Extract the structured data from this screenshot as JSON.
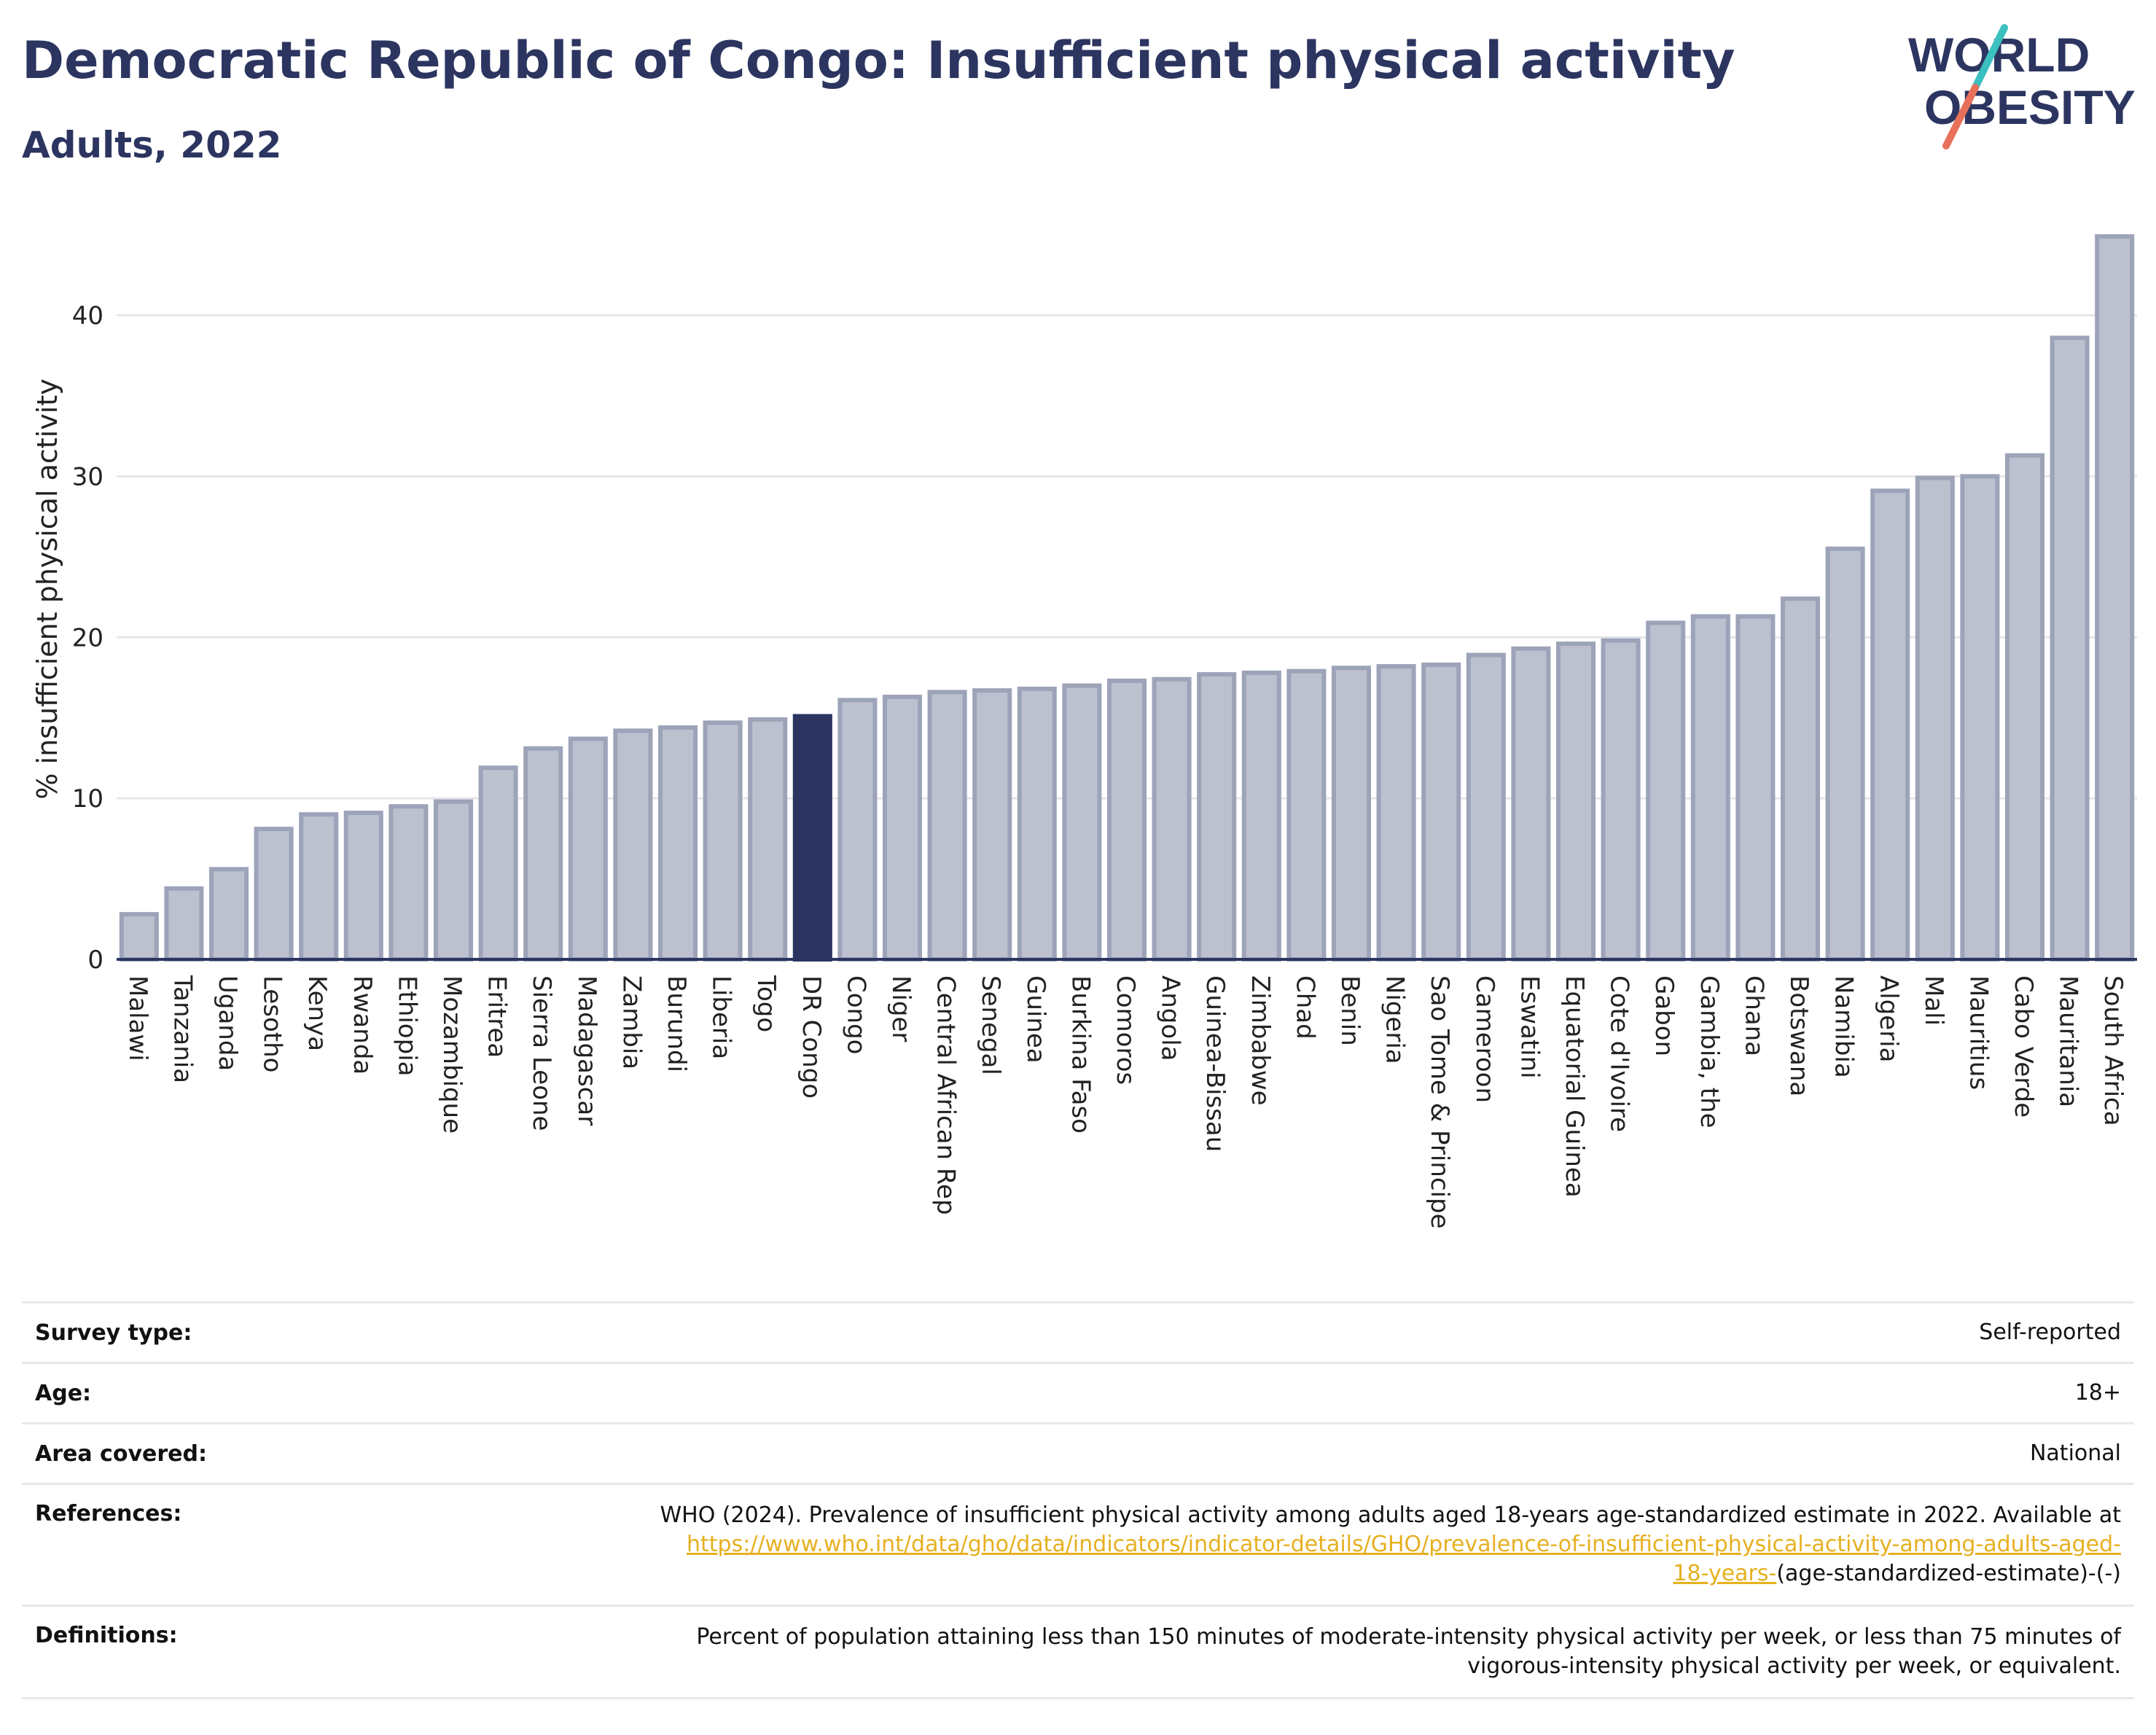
{
  "header": {
    "title": "Democratic Republic of Congo: Insufficient physical activity",
    "subtitle": "Adults, 2022"
  },
  "logo": {
    "line1": "WORLD",
    "line2": "OBESITY"
  },
  "colors": {
    "highlight": "#2c3560",
    "bar_fill": "#bcc0cf",
    "bar_stroke": "#9da3b8",
    "link": "#e6b020"
  },
  "chart_data": {
    "type": "bar",
    "ylabel": "% insufficient physical activity",
    "xlabel": "",
    "ylim": [
      0,
      46
    ],
    "yticks": [
      0,
      10,
      20,
      30,
      40
    ],
    "grid": true,
    "highlight": "DR Congo",
    "categories": [
      "Malawi",
      "Tanzania",
      "Uganda",
      "Lesotho",
      "Kenya",
      "Rwanda",
      "Ethiopia",
      "Mozambique",
      "Eritrea",
      "Sierra Leone",
      "Madagascar",
      "Zambia",
      "Burundi",
      "Liberia",
      "Togo",
      "DR Congo",
      "Congo",
      "Niger",
      "Central African Rep",
      "Senegal",
      "Guinea",
      "Burkina Faso",
      "Comoros",
      "Angola",
      "Guinea-Bissau",
      "Zimbabwe",
      "Chad",
      "Benin",
      "Nigeria",
      "Sao Tome & Principe",
      "Cameroon",
      "Eswatini",
      "Equatorial Guinea",
      "Cote d'Ivoire",
      "Gabon",
      "Gambia, the",
      "Ghana",
      "Botswana",
      "Namibia",
      "Algeria",
      "Mali",
      "Mauritius",
      "Cabo Verde",
      "Mauritania",
      "South Africa"
    ],
    "values": [
      2.8,
      4.4,
      5.6,
      8.1,
      9.0,
      9.1,
      9.5,
      9.8,
      11.9,
      13.1,
      13.7,
      14.2,
      14.4,
      14.7,
      14.9,
      15.1,
      16.1,
      16.3,
      16.6,
      16.7,
      16.8,
      17.0,
      17.3,
      17.4,
      17.7,
      17.8,
      17.9,
      18.1,
      18.2,
      18.3,
      18.9,
      19.3,
      19.6,
      19.8,
      20.9,
      21.3,
      21.3,
      22.4,
      25.5,
      29.1,
      29.9,
      30.0,
      31.3,
      38.6,
      44.9
    ]
  },
  "meta": {
    "survey_type_label": "Survey type:",
    "survey_type_value": "Self-reported",
    "age_label": "Age:",
    "age_value": "18+",
    "area_label": "Area covered:",
    "area_value": "National",
    "references_label": "References:",
    "references_text": "WHO (2024). Prevalence of insufficient physical activity among adults aged 18-years age-standardized estimate in 2022. Available at",
    "references_link_1": "https://www.who.int/data/gho/data/indicators/indicator-details/GHO/prevalence-of-insufficient-physical-activity-among-adults-aged-",
    "references_link_2": "18-years-",
    "references_tail": "(age-standardized-estimate)-(-)",
    "definitions_label": "Definitions:",
    "definitions_line_1": "Percent of population attaining less than 150 minutes of moderate-intensity physical activity per week, or less than 75 minutes of",
    "definitions_line_2": "vigorous-intensity physical activity per week, or equivalent."
  }
}
